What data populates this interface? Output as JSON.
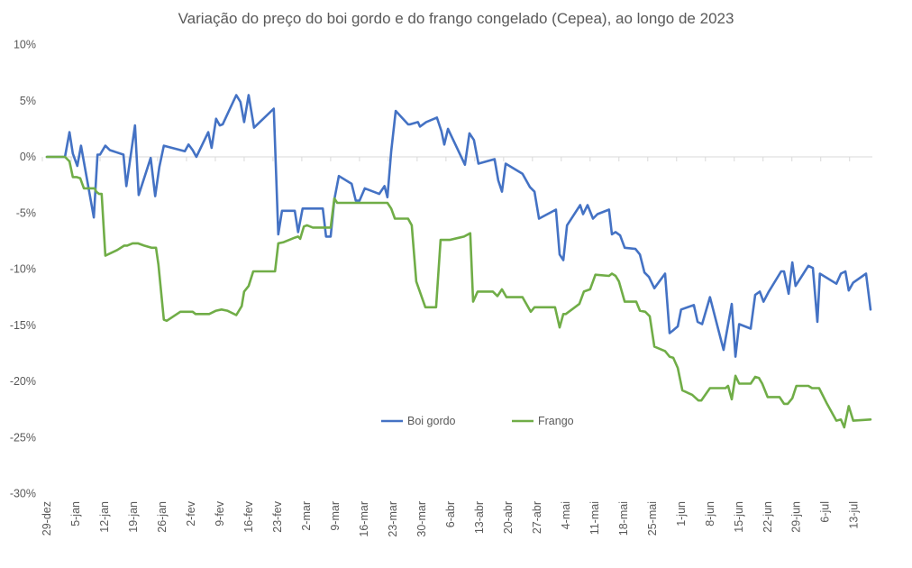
{
  "chart_data": {
    "type": "line",
    "title": "Variação do preço do boi gordo e do frango congelado (Cepea), ao longo de 2023",
    "xlabel": "",
    "ylabel": "",
    "x_unit": "days since 29-dez-2022",
    "ylim": [
      -30,
      10
    ],
    "xlim": [
      0,
      200
    ],
    "y_ticks": [
      10,
      5,
      0,
      -5,
      -10,
      -15,
      -20,
      -25,
      -30
    ],
    "y_tick_labels": [
      "10%",
      "5%",
      "0%",
      "-5%",
      "-10%",
      "-15%",
      "-20%",
      "-25%",
      "-30%"
    ],
    "x_ticks": [
      0,
      7,
      14,
      21,
      28,
      35,
      42,
      49,
      56,
      63,
      70,
      77,
      84,
      91,
      98,
      105,
      112,
      119,
      126,
      133,
      140,
      147,
      154,
      161,
      168,
      175,
      182,
      189,
      196
    ],
    "x_tick_labels": [
      "29-dez",
      "5-jan",
      "12-jan",
      "19-jan",
      "26-jan",
      "2-fev",
      "9-fev",
      "16-fev",
      "23-fev",
      "2-mar",
      "9-mar",
      "16-mar",
      "23-mar",
      "30-mar",
      "6-abr",
      "13-abr",
      "20-abr",
      "27-abr",
      "4-mai",
      "11-mai",
      "18-mai",
      "25-mai",
      "1-jun",
      "8-jun",
      "15-jun",
      "22-jun",
      "29-jun",
      "6-jul",
      "13-jul"
    ],
    "grid": "zero-line only",
    "legend_position": "bottom-center",
    "series": [
      {
        "name": "Boi gordo",
        "color": "#4472C4",
        "points": [
          [
            0,
            0
          ],
          [
            4.4,
            0
          ],
          [
            5.5,
            2.2
          ],
          [
            6.3,
            0.3
          ],
          [
            7.4,
            -0.8
          ],
          [
            8.3,
            1.0
          ],
          [
            11.4,
            -5.4
          ],
          [
            12.3,
            0.2
          ],
          [
            12.9,
            0.2
          ],
          [
            14.2,
            1.0
          ],
          [
            15.3,
            0.6
          ],
          [
            18.6,
            0.2
          ],
          [
            19.3,
            -2.6
          ],
          [
            21.4,
            2.8
          ],
          [
            22.3,
            -3.4
          ],
          [
            25.2,
            -0.1
          ],
          [
            26.3,
            -3.5
          ],
          [
            27.3,
            -0.9
          ],
          [
            28.4,
            1.0
          ],
          [
            33.5,
            0.5
          ],
          [
            34.4,
            1.1
          ],
          [
            35.4,
            0.6
          ],
          [
            36.3,
            0
          ],
          [
            39.2,
            2.2
          ],
          [
            40.0,
            0.8
          ],
          [
            41.1,
            3.4
          ],
          [
            42.0,
            2.8
          ],
          [
            42.7,
            2.9
          ],
          [
            46.0,
            5.5
          ],
          [
            47.0,
            4.9
          ],
          [
            47.9,
            3.1
          ],
          [
            49.0,
            5.5
          ],
          [
            50.3,
            2.6
          ],
          [
            55.1,
            4.3
          ],
          [
            56.2,
            -6.9
          ],
          [
            57.1,
            -4.8
          ],
          [
            60.2,
            -4.8
          ],
          [
            61.0,
            -6.7
          ],
          [
            62.1,
            -4.6
          ],
          [
            67.0,
            -4.6
          ],
          [
            67.8,
            -7.1
          ],
          [
            68.9,
            -7.1
          ],
          [
            69.8,
            -3.8
          ],
          [
            70.9,
            -1.7
          ],
          [
            74.0,
            -2.4
          ],
          [
            75.0,
            -3.9
          ],
          [
            75.9,
            -3.9
          ],
          [
            77.2,
            -2.8
          ],
          [
            80.7,
            -3.3
          ],
          [
            82.0,
            -2.6
          ],
          [
            82.7,
            -3.6
          ],
          [
            83.6,
            0.5
          ],
          [
            84.7,
            4.1
          ],
          [
            87.7,
            2.9
          ],
          [
            88.2,
            2.9
          ],
          [
            90.1,
            3.1
          ],
          [
            90.6,
            2.7
          ],
          [
            92.1,
            3.1
          ],
          [
            94.7,
            3.5
          ],
          [
            95.8,
            2.3
          ],
          [
            96.5,
            1.1
          ],
          [
            97.4,
            2.5
          ],
          [
            101.5,
            -0.7
          ],
          [
            102.6,
            2.1
          ],
          [
            103.7,
            1.5
          ],
          [
            104.8,
            -0.6
          ],
          [
            108.7,
            -0.2
          ],
          [
            109.6,
            -2.1
          ],
          [
            110.5,
            -3.1
          ],
          [
            111.4,
            -0.6
          ],
          [
            115.5,
            -1.5
          ],
          [
            117.3,
            -2.7
          ],
          [
            118.4,
            -3.1
          ],
          [
            119.5,
            -5.5
          ],
          [
            123.6,
            -4.7
          ],
          [
            124.5,
            -8.7
          ],
          [
            125.4,
            -9.2
          ],
          [
            126.3,
            -6.1
          ],
          [
            129.5,
            -4.3
          ],
          [
            130.2,
            -5.1
          ],
          [
            131.3,
            -4.3
          ],
          [
            132.6,
            -5.5
          ],
          [
            133.7,
            -5.1
          ],
          [
            136.5,
            -4.7
          ],
          [
            137.2,
            -6.9
          ],
          [
            138.1,
            -6.7
          ],
          [
            139.2,
            -7.0
          ],
          [
            140.3,
            -8.1
          ],
          [
            142.9,
            -8.2
          ],
          [
            144.0,
            -8.7
          ],
          [
            145.1,
            -10.3
          ],
          [
            146.2,
            -10.7
          ],
          [
            147.5,
            -11.7
          ],
          [
            150.1,
            -10.4
          ],
          [
            151.2,
            -15.7
          ],
          [
            151.9,
            -15.5
          ],
          [
            153.2,
            -15.1
          ],
          [
            154.0,
            -13.6
          ],
          [
            157.1,
            -13.2
          ],
          [
            158.0,
            -14.7
          ],
          [
            159.1,
            -14.9
          ],
          [
            161.0,
            -12.5
          ],
          [
            164.3,
            -17.2
          ],
          [
            166.3,
            -13.1
          ],
          [
            167.2,
            -17.8
          ],
          [
            168.1,
            -14.9
          ],
          [
            170.9,
            -15.3
          ],
          [
            172.0,
            -12.3
          ],
          [
            173.1,
            -12.0
          ],
          [
            174.0,
            -12.9
          ],
          [
            175.3,
            -12.0
          ],
          [
            178.3,
            -10.2
          ],
          [
            179.0,
            -10.2
          ],
          [
            180.1,
            -12.2
          ],
          [
            181.0,
            -9.4
          ],
          [
            181.8,
            -11.5
          ],
          [
            184.9,
            -9.7
          ],
          [
            186.0,
            -9.9
          ],
          [
            187.1,
            -14.7
          ],
          [
            187.7,
            -10.4
          ],
          [
            191.7,
            -11.3
          ],
          [
            192.8,
            -10.4
          ],
          [
            193.9,
            -10.2
          ],
          [
            194.7,
            -11.9
          ],
          [
            195.8,
            -11.2
          ],
          [
            198.9,
            -10.4
          ],
          [
            200.0,
            -13.6
          ]
        ]
      },
      {
        "name": "Frango",
        "color": "#70AD47",
        "points": [
          [
            0,
            0
          ],
          [
            4.4,
            0
          ],
          [
            5.5,
            -0.4
          ],
          [
            6.3,
            -1.8
          ],
          [
            7.2,
            -1.8
          ],
          [
            8.1,
            -1.9
          ],
          [
            9.0,
            -2.8
          ],
          [
            11.6,
            -2.8
          ],
          [
            12.0,
            -3.1
          ],
          [
            12.7,
            -3.3
          ],
          [
            13.3,
            -3.3
          ],
          [
            14.2,
            -8.8
          ],
          [
            17.1,
            -8.3
          ],
          [
            18.8,
            -7.9
          ],
          [
            19.5,
            -7.9
          ],
          [
            20.8,
            -7.7
          ],
          [
            22.1,
            -7.7
          ],
          [
            23.6,
            -7.9
          ],
          [
            25.4,
            -8.1
          ],
          [
            26.5,
            -8.1
          ],
          [
            27.1,
            -9.6
          ],
          [
            28.4,
            -14.5
          ],
          [
            29.1,
            -14.6
          ],
          [
            32.4,
            -13.8
          ],
          [
            35.4,
            -13.8
          ],
          [
            36.1,
            -14.0
          ],
          [
            39.4,
            -14.0
          ],
          [
            41.1,
            -13.7
          ],
          [
            42.4,
            -13.6
          ],
          [
            43.8,
            -13.7
          ],
          [
            46.0,
            -14.1
          ],
          [
            47.3,
            -13.3
          ],
          [
            47.9,
            -12.0
          ],
          [
            49.0,
            -11.5
          ],
          [
            50.1,
            -10.2
          ],
          [
            55.4,
            -10.2
          ],
          [
            56.2,
            -7.7
          ],
          [
            57.5,
            -7.6
          ],
          [
            60.2,
            -7.2
          ],
          [
            61.0,
            -7.1
          ],
          [
            61.5,
            -7.3
          ],
          [
            62.4,
            -6.2
          ],
          [
            63.2,
            -6.1
          ],
          [
            64.6,
            -6.3
          ],
          [
            68.9,
            -6.3
          ],
          [
            69.8,
            -3.7
          ],
          [
            70.5,
            -4.1
          ],
          [
            82.7,
            -4.1
          ],
          [
            83.6,
            -4.6
          ],
          [
            84.5,
            -5.5
          ],
          [
            87.7,
            -5.5
          ],
          [
            88.6,
            -6.1
          ],
          [
            89.7,
            -11.1
          ],
          [
            91.9,
            -13.4
          ],
          [
            94.5,
            -13.4
          ],
          [
            95.6,
            -7.4
          ],
          [
            97.8,
            -7.4
          ],
          [
            101.3,
            -7.1
          ],
          [
            102.8,
            -6.8
          ],
          [
            103.5,
            -12.9
          ],
          [
            104.6,
            -12.0
          ],
          [
            108.3,
            -12.0
          ],
          [
            109.4,
            -12.4
          ],
          [
            110.5,
            -11.8
          ],
          [
            111.6,
            -12.5
          ],
          [
            115.5,
            -12.5
          ],
          [
            117.5,
            -13.8
          ],
          [
            118.4,
            -13.4
          ],
          [
            123.4,
            -13.4
          ],
          [
            124.5,
            -15.2
          ],
          [
            125.4,
            -14.0
          ],
          [
            126.0,
            -14.0
          ],
          [
            129.3,
            -13.1
          ],
          [
            130.4,
            -12.0
          ],
          [
            131.9,
            -11.8
          ],
          [
            133.2,
            -10.5
          ],
          [
            136.5,
            -10.6
          ],
          [
            137.2,
            -10.4
          ],
          [
            138.1,
            -10.6
          ],
          [
            138.9,
            -11.1
          ],
          [
            140.3,
            -12.9
          ],
          [
            143.1,
            -12.9
          ],
          [
            144.0,
            -13.7
          ],
          [
            145.3,
            -13.8
          ],
          [
            146.4,
            -14.2
          ],
          [
            147.5,
            -16.9
          ],
          [
            150.1,
            -17.3
          ],
          [
            151.2,
            -17.8
          ],
          [
            152.1,
            -17.9
          ],
          [
            153.2,
            -18.8
          ],
          [
            154.3,
            -20.8
          ],
          [
            156.7,
            -21.2
          ],
          [
            158.2,
            -21.7
          ],
          [
            158.9,
            -21.7
          ],
          [
            161.0,
            -20.6
          ],
          [
            164.8,
            -20.6
          ],
          [
            165.4,
            -20.4
          ],
          [
            166.3,
            -21.6
          ],
          [
            167.2,
            -19.5
          ],
          [
            168.1,
            -20.2
          ],
          [
            170.9,
            -20.2
          ],
          [
            172.0,
            -19.6
          ],
          [
            172.9,
            -19.7
          ],
          [
            173.7,
            -20.2
          ],
          [
            175.0,
            -21.4
          ],
          [
            177.9,
            -21.4
          ],
          [
            179.0,
            -22.0
          ],
          [
            179.9,
            -22.0
          ],
          [
            181.0,
            -21.5
          ],
          [
            182.0,
            -20.4
          ],
          [
            184.9,
            -20.4
          ],
          [
            185.8,
            -20.6
          ],
          [
            187.5,
            -20.6
          ],
          [
            189.3,
            -21.9
          ],
          [
            191.7,
            -23.5
          ],
          [
            192.8,
            -23.4
          ],
          [
            193.6,
            -24.1
          ],
          [
            194.7,
            -22.2
          ],
          [
            195.8,
            -23.5
          ],
          [
            200.0,
            -23.4
          ]
        ]
      }
    ]
  }
}
